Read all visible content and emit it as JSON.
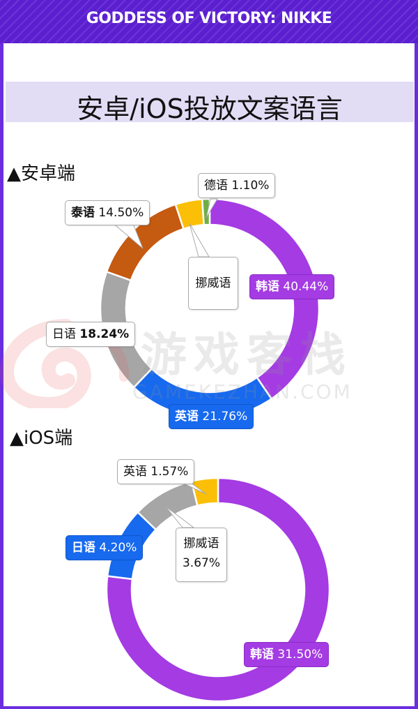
{
  "header": {
    "title": "GODDESS OF VICTORY: NIKKE"
  },
  "banner": {
    "title": "安卓/iOS投放文案语言"
  },
  "watermark": {
    "text": "游戏客栈",
    "subtext": "GAMEKEZHAN.COM"
  },
  "sections": [
    {
      "label": "▲安卓端"
    },
    {
      "label": "▲iOS端"
    }
  ],
  "chart_data": [
    {
      "type": "pie",
      "title": "▲安卓端",
      "donut": true,
      "slices": [
        {
          "name": "韩语",
          "value": 40.44,
          "label": "40.44%",
          "color": "#a43be3"
        },
        {
          "name": "英语",
          "value": 21.76,
          "label": "21.76%",
          "color": "#1769ee"
        },
        {
          "name": "日语",
          "value": 18.24,
          "label": "18.24%",
          "color": "#a6a6a6"
        },
        {
          "name": "泰语",
          "value": 14.5,
          "label": "14.50%",
          "color": "#c55a11"
        },
        {
          "name": "挪威语",
          "value": 3.96,
          "label": "",
          "color": "#fbbf07"
        },
        {
          "name": "德语",
          "value": 1.1,
          "label": "1.10%",
          "color": "#70ad47"
        }
      ]
    },
    {
      "type": "pie",
      "title": "▲iOS端",
      "donut": true,
      "slices": [
        {
          "name": "韩语",
          "value": 31.5,
          "label": "31.50%",
          "color": "#a43be3"
        },
        {
          "name": "日语",
          "value": 4.2,
          "label": "4.20%",
          "color": "#1769ee"
        },
        {
          "name": "挪威语",
          "value": 3.67,
          "label": "3.67%",
          "color": "#a6a6a6"
        },
        {
          "name": "英语",
          "value": 1.57,
          "label": "1.57%",
          "color": "#fbbf07"
        }
      ]
    }
  ]
}
